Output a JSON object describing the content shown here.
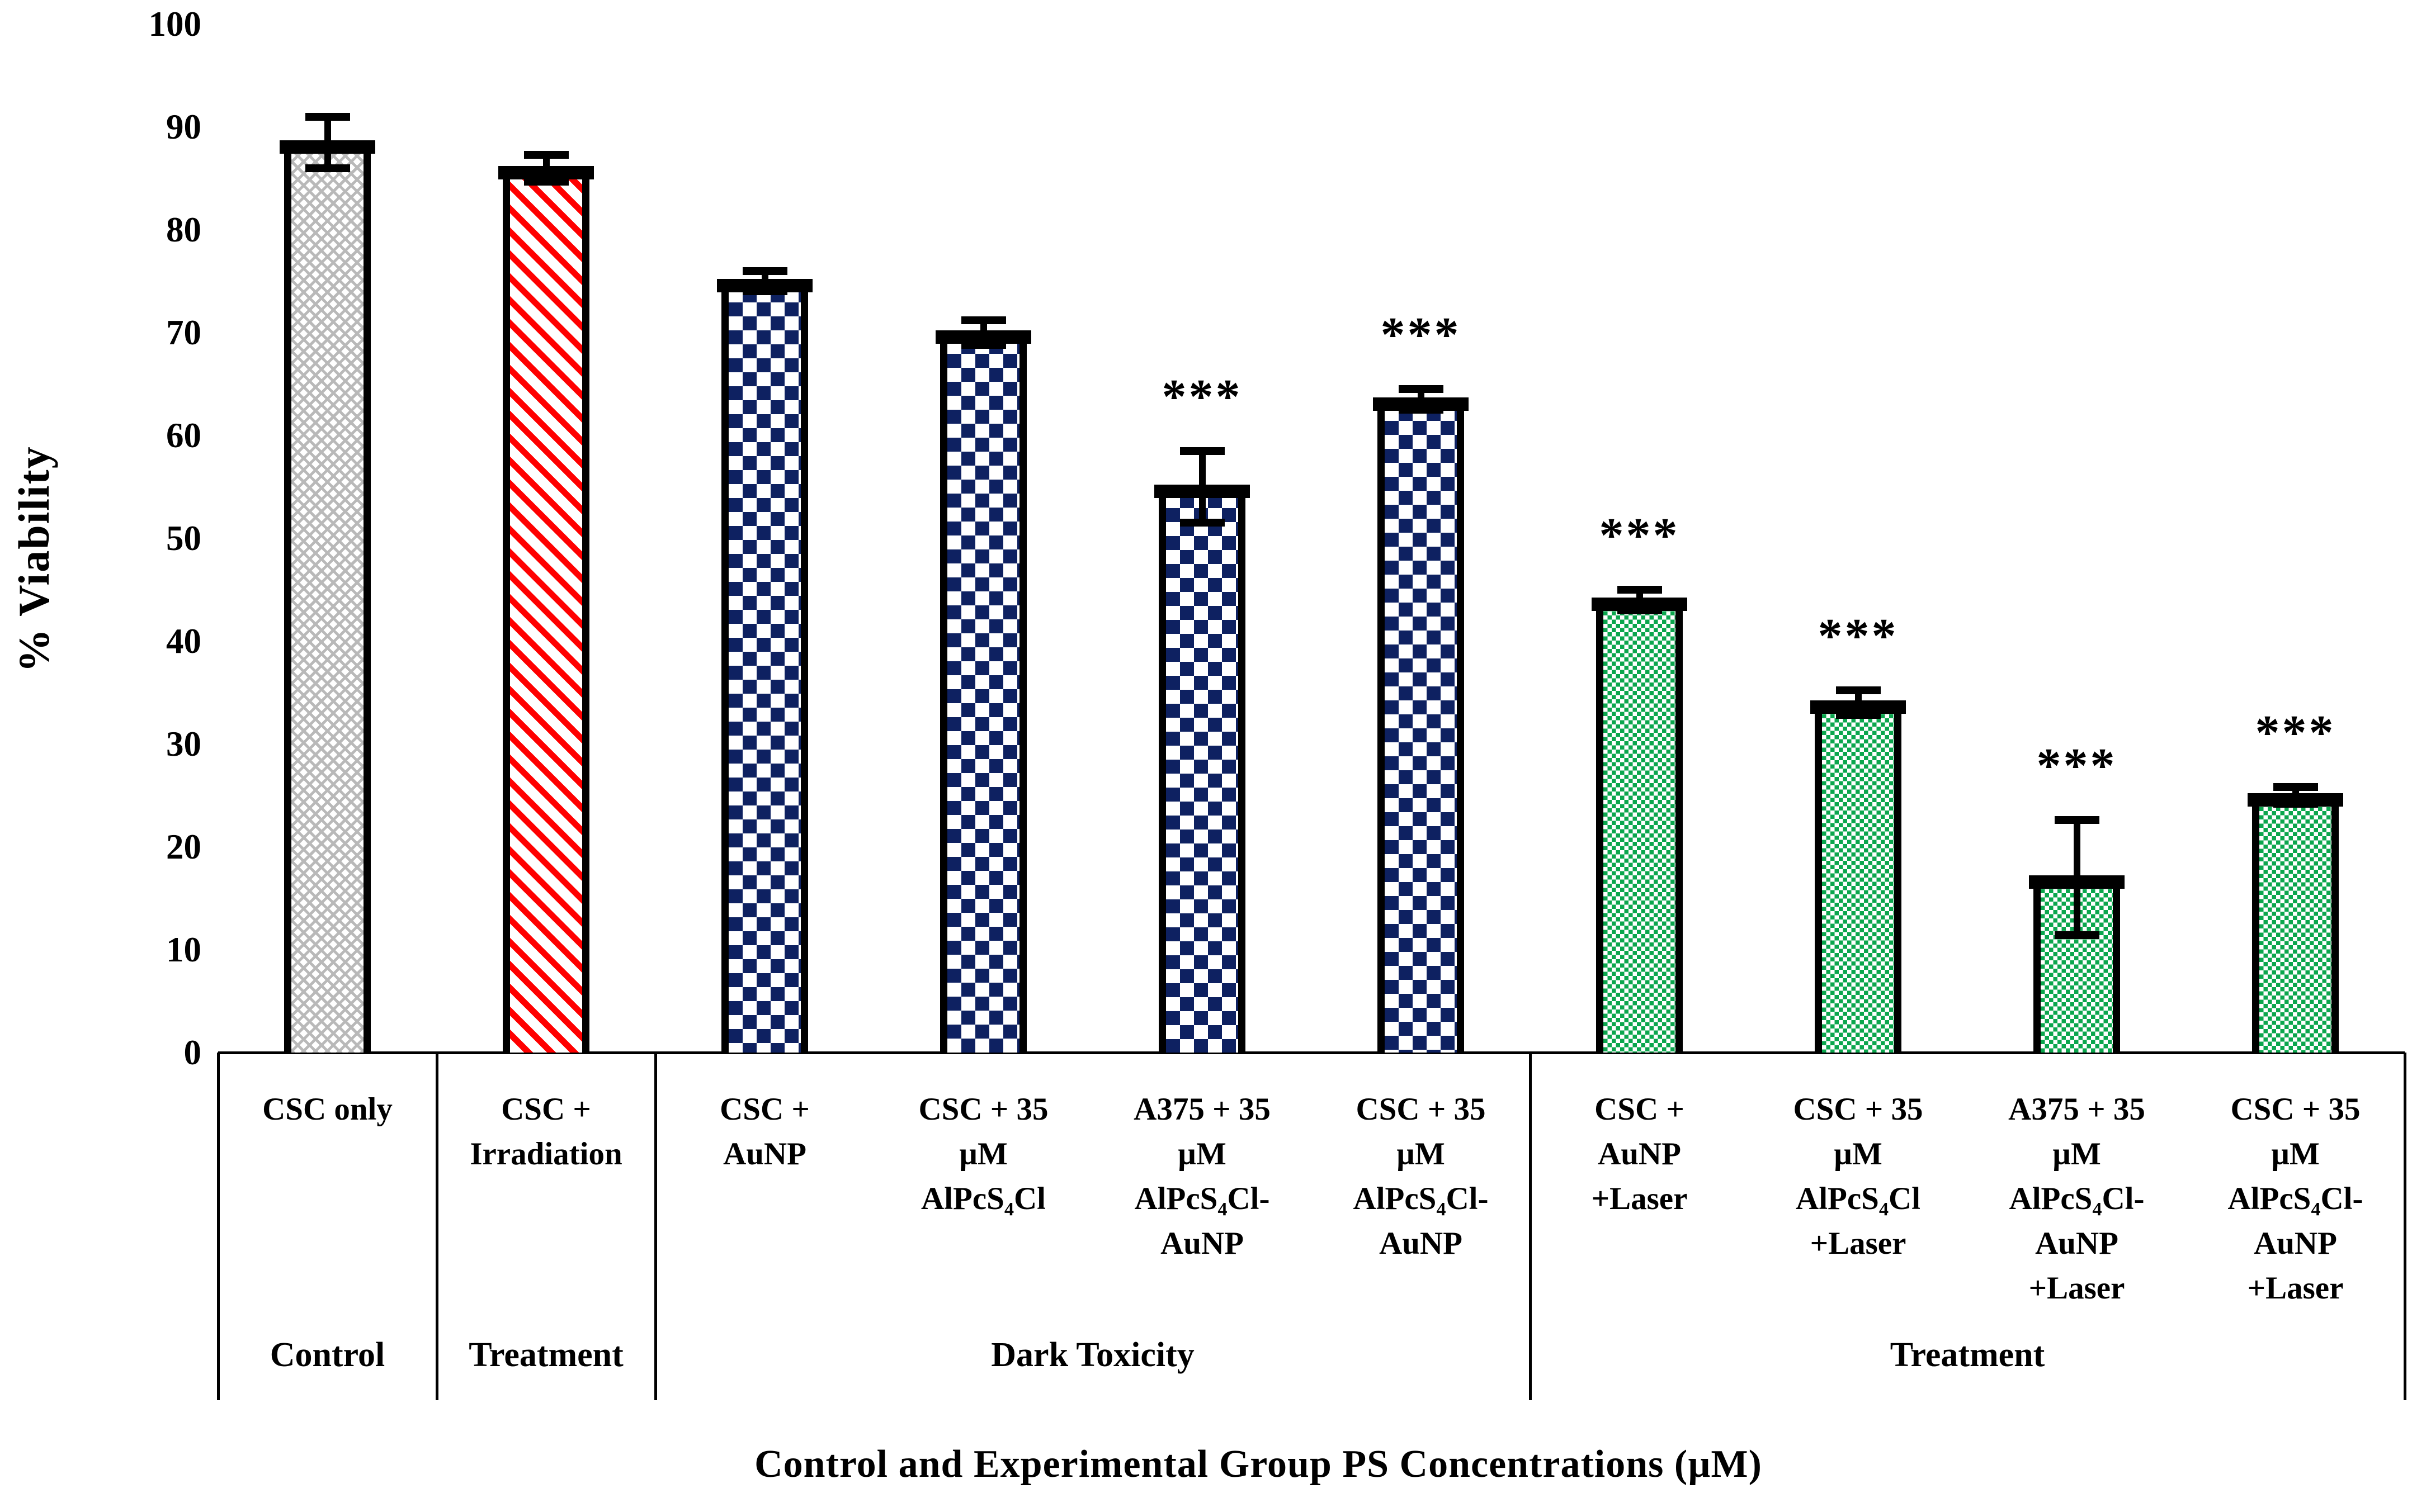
{
  "colors": {
    "navy": "#0e2161",
    "green": "#0ba64d",
    "red": "#ff0000",
    "gray": "#b9b9b9",
    "black": "#000000",
    "background": "#ffffff"
  },
  "chart_data": {
    "type": "bar",
    "title": "",
    "xlabel": "Control and Experimental Group PS Concentrations (µM)",
    "ylabel": "% Viability",
    "ylim": [
      0,
      100
    ],
    "ytick_interval": 10,
    "yticks": [
      0,
      10,
      20,
      30,
      40,
      50,
      60,
      70,
      80,
      90,
      100
    ],
    "grid": false,
    "legend": false,
    "error_bars": true,
    "categories": [
      "CSC only",
      "CSC + Irradiation",
      "CSC + AuNP",
      "CSC + 35 µM AlPcS₄Cl",
      "A375 + 35 µM AlPcS₄Cl-AuNP",
      "CSC + 35 µM AlPcS₄Cl-AuNP",
      "CSC + AuNP +Laser",
      "CSC + 35 µM AlPcS₄Cl +Laser",
      "A375 + 35 µM AlPcS₄Cl-AuNP +Laser",
      "CSC + 35 µM AlPcS₄Cl-AuNP +Laser"
    ],
    "values": [
      88.5,
      86,
      75,
      70,
      55,
      63.5,
      44,
      34,
      17,
      25
    ],
    "errors": [
      2.5,
      1.3,
      1.0,
      1.2,
      3.5,
      1.0,
      1.0,
      1.2,
      5.6,
      0.8
    ],
    "bars": [
      {
        "label_lines": [
          "CSC only"
        ],
        "value": 88.5,
        "error": 2.5,
        "significance": "",
        "pattern": "gray-herringbone",
        "fill": "#b9b9b9"
      },
      {
        "label_lines": [
          "CSC +",
          "Irradiation"
        ],
        "value": 86,
        "error": 1.3,
        "significance": "",
        "pattern": "red-diagonal-stripes",
        "fill": "#ff0000"
      },
      {
        "label_lines": [
          "CSC +",
          "AuNP"
        ],
        "value": 75,
        "error": 1.0,
        "significance": "",
        "pattern": "navy-checkerboard",
        "fill": "#0e2161"
      },
      {
        "label_lines": [
          "CSC + 35",
          "µM",
          "AlPcS₄Cl"
        ],
        "value": 70,
        "error": 1.2,
        "significance": "",
        "pattern": "navy-checkerboard",
        "fill": "#0e2161"
      },
      {
        "label_lines": [
          "A375 + 35",
          "µM",
          "AlPcS₄Cl-",
          "AuNP"
        ],
        "value": 55,
        "error": 3.5,
        "significance": "***",
        "pattern": "navy-checkerboard",
        "fill": "#0e2161"
      },
      {
        "label_lines": [
          "CSC + 35",
          "µM",
          "AlPcS₄Cl-",
          "AuNP"
        ],
        "value": 63.5,
        "error": 1.0,
        "significance": "***",
        "pattern": "navy-checkerboard",
        "fill": "#0e2161"
      },
      {
        "label_lines": [
          "CSC +",
          "AuNP",
          "+Laser"
        ],
        "value": 44,
        "error": 1.0,
        "significance": "***",
        "pattern": "green-checkerboard",
        "fill": "#0ba64d"
      },
      {
        "label_lines": [
          "CSC + 35",
          "µM",
          "AlPcS₄Cl",
          "+Laser"
        ],
        "value": 34,
        "error": 1.2,
        "significance": "***",
        "pattern": "green-checkerboard",
        "fill": "#0ba64d"
      },
      {
        "label_lines": [
          "A375 + 35",
          "µM",
          "AlPcS₄Cl-",
          "AuNP",
          "+Laser"
        ],
        "value": 17,
        "error": 5.6,
        "significance": "***",
        "pattern": "green-checkerboard",
        "fill": "#0ba64d"
      },
      {
        "label_lines": [
          "CSC + 35",
          "µM",
          "AlPcS₄Cl-",
          "AuNP",
          "+Laser"
        ],
        "value": 25,
        "error": 0.8,
        "significance": "***",
        "pattern": "green-checkerboard",
        "fill": "#0ba64d"
      }
    ],
    "groups": [
      {
        "label": "Control",
        "span": [
          0,
          0
        ]
      },
      {
        "label": "Treatment",
        "span": [
          1,
          1
        ]
      },
      {
        "label": "Dark Toxicity",
        "span": [
          2,
          5
        ]
      },
      {
        "label": "Treatment",
        "span": [
          6,
          9
        ]
      }
    ]
  }
}
